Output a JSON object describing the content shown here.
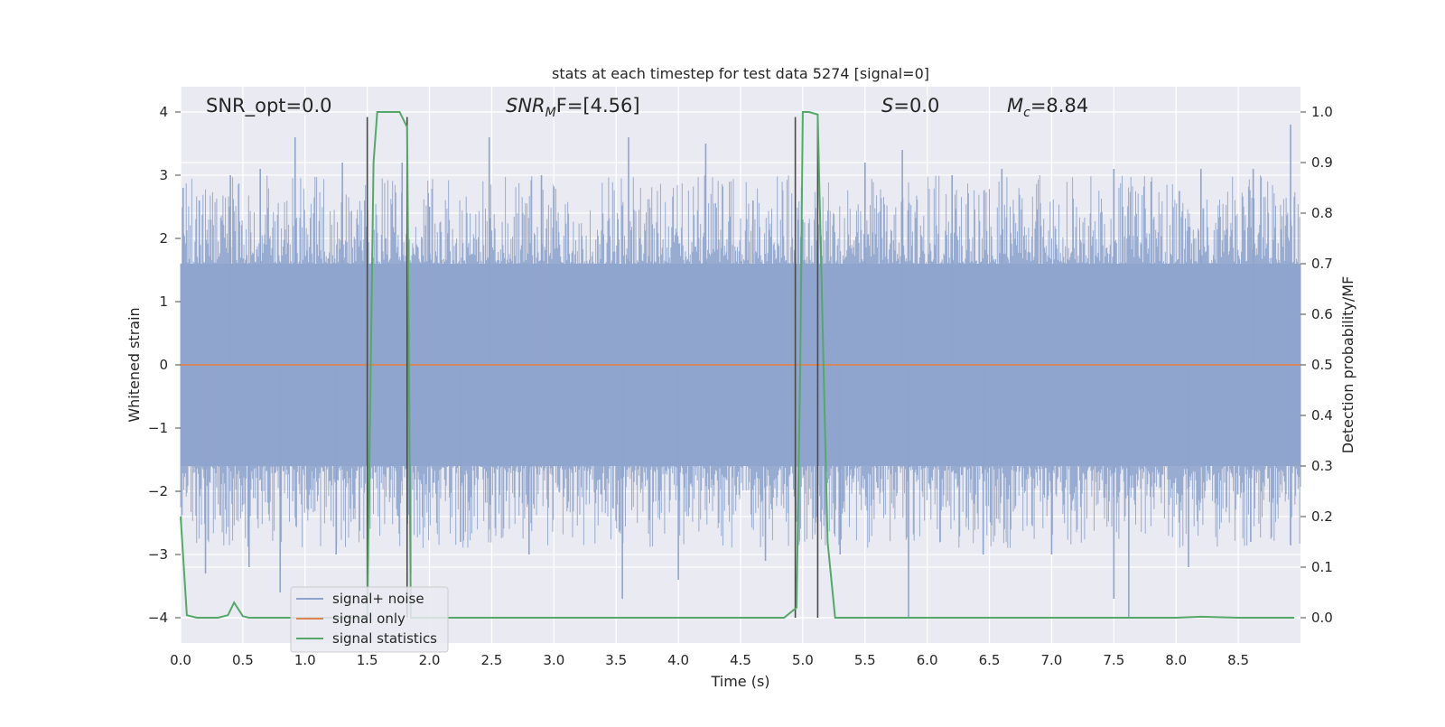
{
  "chart_data": {
    "type": "line",
    "title": "stats at each timestep for test data 5274 [signal=0]",
    "xlabel": "Time (s)",
    "ylabel_left": "Whitened strain",
    "ylabel_right": "Detection probability/MF",
    "xlim": [
      0.0,
      9.0
    ],
    "ylim_left": [
      -4.4,
      4.4
    ],
    "ylim_right": [
      -0.05,
      1.05
    ],
    "xticks": [
      "0.0",
      "0.5",
      "1.0",
      "1.5",
      "2.0",
      "2.5",
      "3.0",
      "3.5",
      "4.0",
      "4.5",
      "5.0",
      "5.5",
      "6.0",
      "6.5",
      "7.0",
      "7.5",
      "8.0",
      "8.5"
    ],
    "yticks_left": [
      "4",
      "3",
      "2",
      "1",
      "0",
      "−1",
      "−2",
      "−3",
      "−4"
    ],
    "yticks_right": [
      "1.0",
      "0.9",
      "0.8",
      "0.7",
      "0.6",
      "0.5",
      "0.4",
      "0.3",
      "0.2",
      "0.1",
      "0.0"
    ],
    "grid": true,
    "annotations": {
      "snr_opt": "SNR_opt=0.0",
      "snr_mf_main": "SNR",
      "snr_mf_sub": "M",
      "snr_mf_rest": "F=[4.56]",
      "s_main": "S",
      "s_rest": "=0.0",
      "mc_main": "M",
      "mc_sub": "c",
      "mc_rest": "=8.84"
    },
    "legend": {
      "placement": "lower-left",
      "entries": [
        "signal+ noise",
        "signal only",
        "signal statistics"
      ]
    },
    "colors": {
      "noise": "#8fa4cc",
      "signal_only": "#dd8452",
      "statistics": "#55a868",
      "markers": "#4a4a4a",
      "background": "#eaeaf2"
    },
    "series": [
      {
        "name": "signal+ noise",
        "axis": "left",
        "style": "dense-noise",
        "typical_envelope": [
          -1.6,
          1.6
        ],
        "peaks": [
          {
            "x": 0.02,
            "y": 2.8
          },
          {
            "x": 0.15,
            "y": 2.6
          },
          {
            "x": 0.4,
            "y": 3.0
          },
          {
            "x": 0.64,
            "y": 3.1
          },
          {
            "x": 0.92,
            "y": 3.6
          },
          {
            "x": 1.3,
            "y": 3.2
          },
          {
            "x": 1.48,
            "y": 2.6
          },
          {
            "x": 1.78,
            "y": 3.2
          },
          {
            "x": 2.0,
            "y": 2.5
          },
          {
            "x": 2.48,
            "y": 3.6
          },
          {
            "x": 2.9,
            "y": 3.0
          },
          {
            "x": 3.6,
            "y": 3.6
          },
          {
            "x": 4.22,
            "y": 3.5
          },
          {
            "x": 4.6,
            "y": 2.6
          },
          {
            "x": 5.0,
            "y": 2.3
          },
          {
            "x": 5.5,
            "y": 3.2
          },
          {
            "x": 5.8,
            "y": 3.4
          },
          {
            "x": 6.2,
            "y": 3.0
          },
          {
            "x": 6.6,
            "y": 3.1
          },
          {
            "x": 7.5,
            "y": 3.1
          },
          {
            "x": 7.8,
            "y": 2.9
          },
          {
            "x": 8.2,
            "y": 3.1
          },
          {
            "x": 8.62,
            "y": 3.1
          },
          {
            "x": 8.92,
            "y": 3.8
          }
        ],
        "troughs": [
          {
            "x": 0.2,
            "y": -3.3
          },
          {
            "x": 0.55,
            "y": -3.2
          },
          {
            "x": 0.8,
            "y": -3.6
          },
          {
            "x": 1.25,
            "y": -3.0
          },
          {
            "x": 1.85,
            "y": -3.3
          },
          {
            "x": 2.25,
            "y": -2.8
          },
          {
            "x": 2.8,
            "y": -3.0
          },
          {
            "x": 3.55,
            "y": -3.7
          },
          {
            "x": 4.0,
            "y": -3.4
          },
          {
            "x": 4.7,
            "y": -3.1
          },
          {
            "x": 5.3,
            "y": -3.0
          },
          {
            "x": 5.85,
            "y": -4.0
          },
          {
            "x": 6.45,
            "y": -3.0
          },
          {
            "x": 7.0,
            "y": -3.0
          },
          {
            "x": 7.5,
            "y": -3.7
          },
          {
            "x": 7.62,
            "y": -4.0
          },
          {
            "x": 8.1,
            "y": -3.2
          },
          {
            "x": 8.6,
            "y": -2.8
          }
        ]
      },
      {
        "name": "signal only",
        "axis": "left",
        "x": [
          0.0,
          9.0
        ],
        "y": [
          0.0,
          0.0
        ]
      },
      {
        "name": "signal statistics",
        "axis": "right",
        "x": [
          0.0,
          0.05,
          0.13,
          0.2,
          0.3,
          0.38,
          0.43,
          0.5,
          0.55,
          0.7,
          0.9,
          1.1,
          1.3,
          1.45,
          1.5,
          1.55,
          1.58,
          1.6,
          1.7,
          1.76,
          1.82,
          1.85,
          1.88,
          2.0,
          2.5,
          3.0,
          3.5,
          4.0,
          4.5,
          4.8,
          4.85,
          4.95,
          4.98,
          5.0,
          5.05,
          5.12,
          5.2,
          5.26,
          5.4,
          6.0,
          7.0,
          7.5,
          8.0,
          8.2,
          8.5,
          8.95
        ],
        "y": [
          0.2,
          0.005,
          0.0,
          0.0,
          0.0,
          0.005,
          0.03,
          0.003,
          0.0,
          0.0,
          0.0,
          0.0,
          0.0,
          0.0,
          0.0,
          0.9,
          1.0,
          1.0,
          1.0,
          1.0,
          0.97,
          0.0,
          0.0,
          0.0,
          0.0,
          0.0,
          0.0,
          0.0,
          0.0,
          0.0,
          0.0,
          0.02,
          0.5,
          1.0,
          1.0,
          0.995,
          0.15,
          0.0,
          0.0,
          0.0,
          0.0,
          0.0,
          0.0,
          0.002,
          0.0,
          0.0
        ]
      }
    ],
    "event_markers": {
      "axis": "right",
      "x": [
        1.5,
        1.82,
        4.94,
        5.12
      ],
      "y_range": [
        0.0,
        0.99
      ]
    }
  }
}
